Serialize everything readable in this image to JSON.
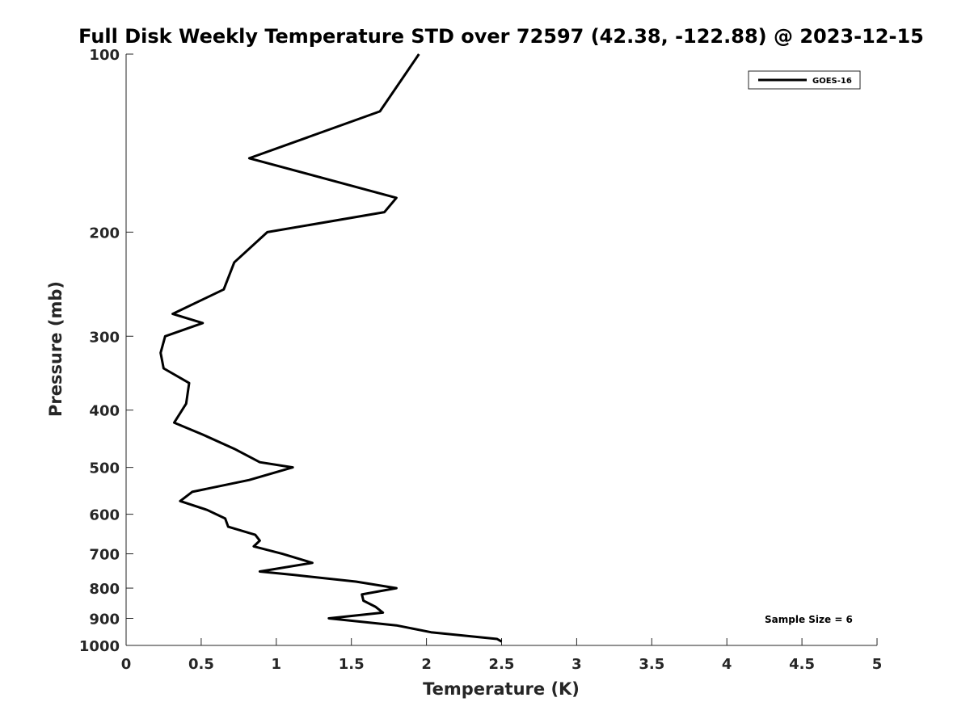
{
  "chart_data": {
    "type": "line",
    "title": "Full Disk Weekly Temperature STD over 72597 (42.38, -122.88) @ 2023-12-15",
    "xlabel": "Temperature (K)",
    "ylabel": "Pressure (mb)",
    "xlim": [
      0,
      5
    ],
    "ylim": [
      1000,
      100
    ],
    "y_scale": "log",
    "y_reversed": true,
    "grid": false,
    "legend_position": "top-right",
    "x_ticks": [
      "0",
      "0.5",
      "1",
      "1.5",
      "2",
      "2.5",
      "3",
      "3.5",
      "4",
      "4.5",
      "5"
    ],
    "x_tick_values": [
      0,
      0.5,
      1,
      1.5,
      2,
      2.5,
      3,
      3.5,
      4,
      4.5,
      5
    ],
    "y_ticks": [
      "100",
      "200",
      "300",
      "400",
      "500",
      "600",
      "700",
      "800",
      "900",
      "1000"
    ],
    "y_tick_values": [
      100,
      200,
      300,
      400,
      500,
      600,
      700,
      800,
      900,
      1000
    ],
    "series": [
      {
        "name": "GOES-16",
        "color": "#000000",
        "points": [
          [
            1.95,
            100
          ],
          [
            1.69,
            125
          ],
          [
            0.82,
            150
          ],
          [
            1.8,
            175
          ],
          [
            1.72,
            185
          ],
          [
            0.94,
            200
          ],
          [
            0.72,
            225
          ],
          [
            0.65,
            250
          ],
          [
            0.31,
            275
          ],
          [
            0.51,
            285
          ],
          [
            0.26,
            300
          ],
          [
            0.23,
            320
          ],
          [
            0.25,
            340
          ],
          [
            0.42,
            360
          ],
          [
            0.4,
            390
          ],
          [
            0.32,
            420
          ],
          [
            0.51,
            440
          ],
          [
            0.72,
            465
          ],
          [
            0.89,
            490
          ],
          [
            1.11,
            500
          ],
          [
            0.82,
            525
          ],
          [
            0.44,
            550
          ],
          [
            0.36,
            570
          ],
          [
            0.54,
            590
          ],
          [
            0.66,
            610
          ],
          [
            0.68,
            630
          ],
          [
            0.86,
            650
          ],
          [
            0.89,
            665
          ],
          [
            0.85,
            680
          ],
          [
            1.04,
            700
          ],
          [
            1.24,
            725
          ],
          [
            0.89,
            750
          ],
          [
            1.12,
            760
          ],
          [
            1.53,
            780
          ],
          [
            1.8,
            800
          ],
          [
            1.57,
            820
          ],
          [
            1.58,
            840
          ],
          [
            1.66,
            860
          ],
          [
            1.71,
            880
          ],
          [
            1.35,
            900
          ],
          [
            1.8,
            925
          ],
          [
            2.03,
            950
          ],
          [
            2.47,
            975
          ],
          [
            2.5,
            985
          ]
        ]
      }
    ],
    "annotations": [
      "Sample Size = 6"
    ]
  }
}
